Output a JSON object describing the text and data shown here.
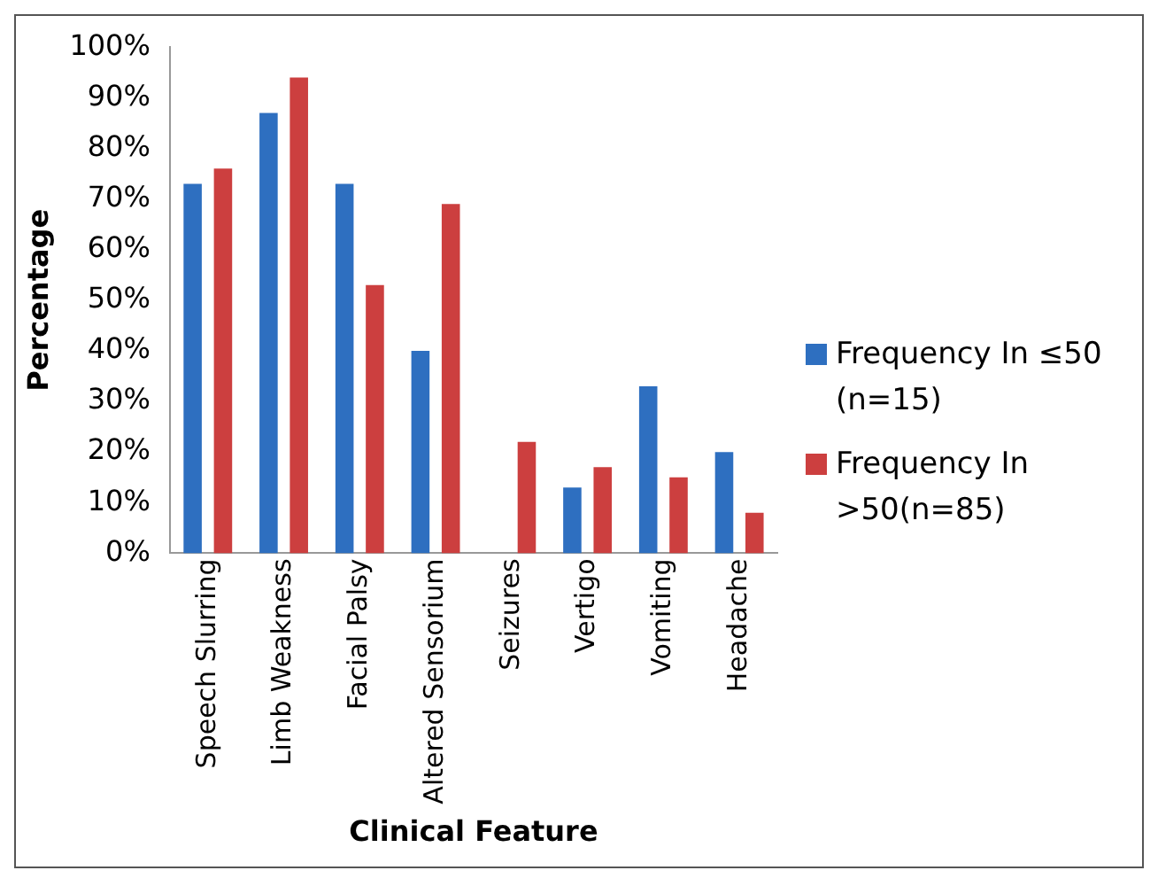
{
  "chart_data": {
    "type": "bar",
    "xlabel": "Clinical Feature",
    "ylabel": "Percentage",
    "categories": [
      "Speech Slurring",
      "Limb Weakness",
      "Facial Palsy",
      "Altered Sensorium",
      "Seizures",
      "Vertigo",
      "Vomiting",
      "Headache"
    ],
    "series": [
      {
        "name": "Frequency In ≤50 (n=15)",
        "color": "#2e6fc0",
        "values": [
          73,
          87,
          73,
          40,
          0,
          13,
          33,
          20
        ]
      },
      {
        "name": "Frequency In >50(n=85)",
        "color": "#cc3f3f",
        "values": [
          76,
          94,
          53,
          69,
          22,
          17,
          15,
          8
        ]
      }
    ],
    "ylim": [
      0,
      100
    ],
    "yticks": [
      {
        "value": 0,
        "label": "0%"
      },
      {
        "value": 10,
        "label": "10%"
      },
      {
        "value": 20,
        "label": "20%"
      },
      {
        "value": 30,
        "label": "30%"
      },
      {
        "value": 40,
        "label": "40%"
      },
      {
        "value": 50,
        "label": "50%"
      },
      {
        "value": 60,
        "label": "60%"
      },
      {
        "value": 70,
        "label": "70%"
      },
      {
        "value": 80,
        "label": "80%"
      },
      {
        "value": 90,
        "label": "90%"
      },
      {
        "value": 100,
        "label": "100%"
      }
    ],
    "grid": false,
    "legend": "right"
  }
}
